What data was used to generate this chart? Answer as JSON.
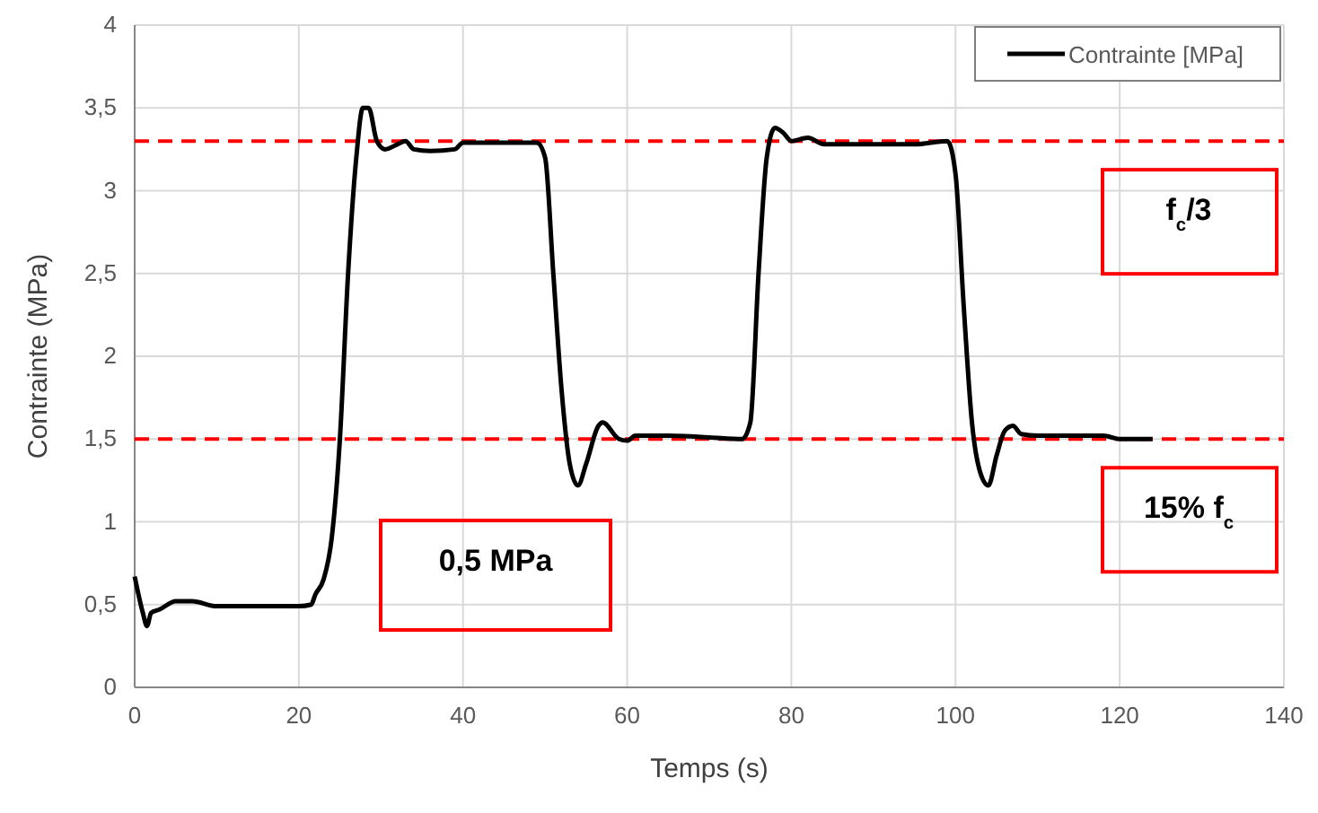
{
  "chart_data": {
    "type": "line",
    "xlabel": "Temps (s)",
    "ylabel": "Contrainte (MPa)",
    "xlim": [
      0,
      140
    ],
    "xticks": [
      0,
      20,
      40,
      60,
      80,
      100,
      120,
      140
    ],
    "ylim": [
      0,
      4
    ],
    "yticks": [
      0,
      {
        "value": 0.5,
        "label": "0,5"
      },
      1,
      {
        "value": 1.5,
        "label": "1,5"
      },
      2,
      {
        "value": 2.5,
        "label": "2,5"
      },
      3,
      {
        "value": 3.5,
        "label": "3,5"
      },
      4
    ],
    "grid": true,
    "legend": "top right",
    "marker": "none",
    "line_style": "solid",
    "series": [
      {
        "name": "Contrainte [MPa]",
        "color": "#000000",
        "x": [
          0,
          1,
          1.5,
          2,
          3,
          5,
          7,
          10,
          15,
          20,
          21.5,
          22,
          23,
          24,
          25,
          26,
          27,
          27.8,
          28.5,
          29.5,
          30.5,
          32,
          33,
          34,
          36,
          39,
          40,
          45,
          49,
          50,
          51,
          52,
          53,
          54,
          55,
          56.5,
          57,
          59,
          60,
          61,
          65,
          70,
          74,
          75,
          76,
          77,
          78,
          79,
          80,
          82,
          84,
          88,
          95,
          99,
          100,
          101,
          102,
          103,
          104,
          105,
          106,
          107,
          108,
          110,
          118,
          120,
          124
        ],
        "values": [
          0.67,
          0.45,
          0.37,
          0.45,
          0.47,
          0.52,
          0.52,
          0.49,
          0.49,
          0.49,
          0.5,
          0.56,
          0.65,
          0.9,
          1.5,
          2.5,
          3.2,
          3.5,
          3.5,
          3.3,
          3.25,
          3.28,
          3.3,
          3.25,
          3.24,
          3.25,
          3.29,
          3.29,
          3.29,
          3.2,
          2.5,
          1.8,
          1.35,
          1.22,
          1.35,
          1.58,
          1.6,
          1.5,
          1.49,
          1.52,
          1.52,
          1.51,
          1.5,
          1.6,
          2.5,
          3.2,
          3.38,
          3.35,
          3.3,
          3.32,
          3.28,
          3.28,
          3.28,
          3.3,
          3.1,
          2.3,
          1.6,
          1.3,
          1.22,
          1.4,
          1.55,
          1.58,
          1.53,
          1.52,
          1.52,
          1.5,
          1.5
        ]
      }
    ],
    "ref_lines": [
      {
        "axis": "y",
        "value": 3.3,
        "label": "f$_{c}$/3",
        "color": "#ff0000",
        "line_style": "dashed"
      },
      {
        "axis": "y",
        "value": 1.5,
        "label": "15% f$_{c}$",
        "color": "#ff0000",
        "line_style": "dashed"
      }
    ],
    "annotations": [
      "0,5 MPa"
    ]
  }
}
